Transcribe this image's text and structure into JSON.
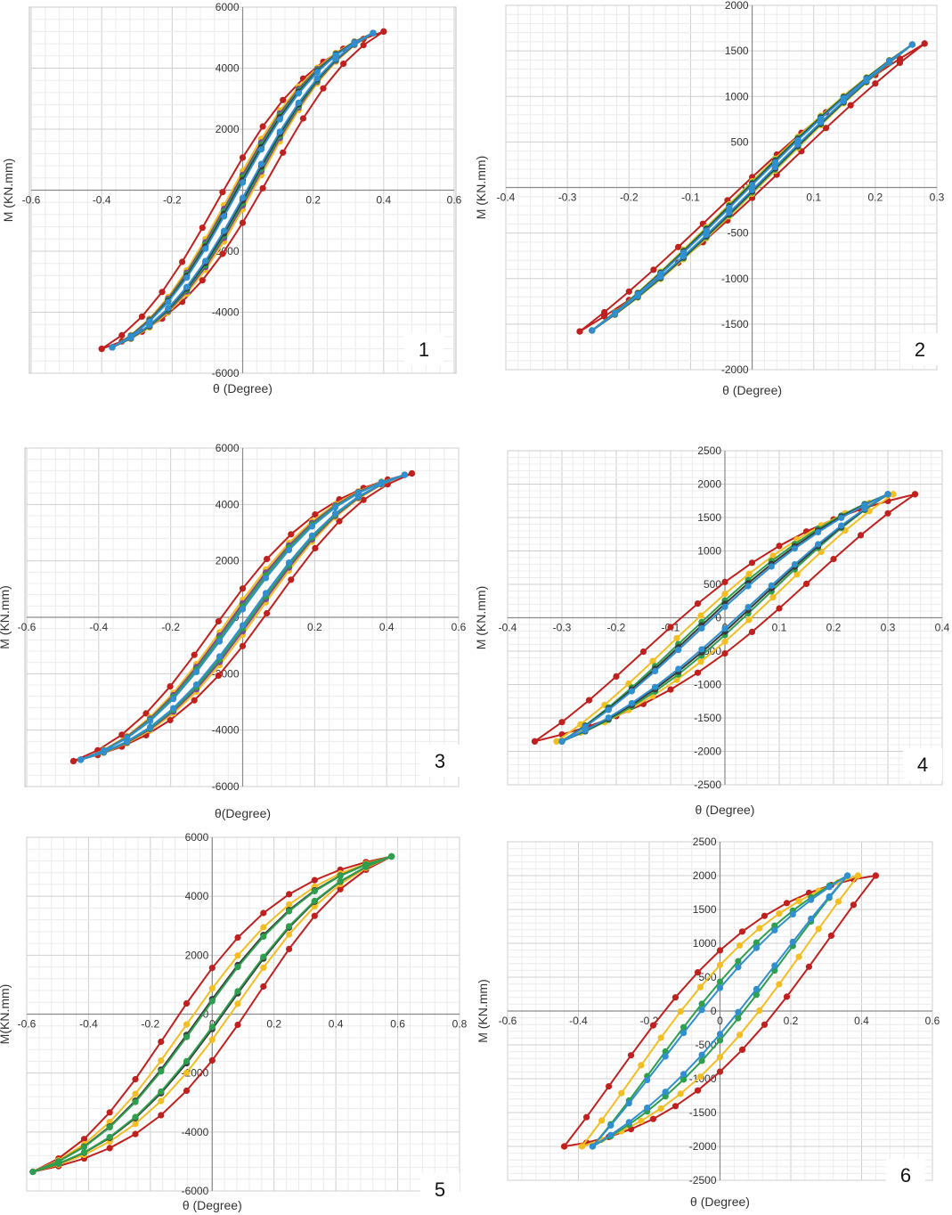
{
  "colors": {
    "red": "#c0201e",
    "yellow": "#f2be22",
    "green": "#2e9e4f",
    "blue": "#2f8fcf",
    "purple": "#7a4a96",
    "dark": "#3a3a3a",
    "grid": "#d6d6d6"
  },
  "chart_data": [
    {
      "type": "scatter",
      "number": "1",
      "xlabel": "θ (Degree)",
      "ylabel": "M (KN.mm)",
      "xlim": [
        -0.6,
        0.6
      ],
      "ylim": [
        -6000,
        6000
      ],
      "xticks": [
        "-0.6",
        "-0.4",
        "-0.2",
        "0",
        "0.2",
        "0.4",
        "0.6"
      ],
      "yticks": [
        "-6000",
        "-4000",
        "-2000",
        "0",
        "2000",
        "4000",
        "6000"
      ],
      "series": [
        {
          "color": "red",
          "amp_x": 0.4,
          "amp_y": 5200,
          "width": 0.055,
          "k": 1.3
        },
        {
          "color": "yellow",
          "amp_x": 0.37,
          "amp_y": 5150,
          "width": 0.03,
          "k": 1.3
        },
        {
          "color": "purple",
          "amp_x": 0.37,
          "amp_y": 5150,
          "width": 0.024,
          "k": 1.3
        },
        {
          "color": "green",
          "amp_x": 0.37,
          "amp_y": 5150,
          "width": 0.02,
          "k": 1.3
        },
        {
          "color": "dark",
          "amp_x": 0.37,
          "amp_y": 5150,
          "width": 0.016,
          "k": 1.3
        },
        {
          "color": "blue",
          "amp_x": 0.37,
          "amp_y": 5150,
          "width": 0.012,
          "k": 1.3
        }
      ]
    },
    {
      "type": "scatter",
      "number": "2",
      "xlabel": "θ (Degree)",
      "ylabel": "M (KN.mm)",
      "xlim": [
        -0.4,
        0.3
      ],
      "ylim": [
        -2000,
        2000
      ],
      "xticks": [
        "-0.4",
        "-0.3",
        "-0.2",
        "-0.1",
        "0",
        "0.1",
        "0.2",
        "0.3"
      ],
      "yticks": [
        "-2000",
        "-1500",
        "-1000",
        "-500",
        "0",
        "500",
        "1000",
        "1500",
        "2000"
      ],
      "series": [
        {
          "color": "red",
          "amp_x": 0.28,
          "amp_y": 1580,
          "width": 0.018,
          "k": 0.6
        },
        {
          "color": "yellow",
          "amp_x": 0.26,
          "amp_y": 1570,
          "width": 0.01,
          "k": 0.6
        },
        {
          "color": "green",
          "amp_x": 0.26,
          "amp_y": 1570,
          "width": 0.008,
          "k": 0.6
        },
        {
          "color": "dark",
          "amp_x": 0.26,
          "amp_y": 1570,
          "width": 0.006,
          "k": 0.6
        },
        {
          "color": "blue",
          "amp_x": 0.26,
          "amp_y": 1570,
          "width": 0.004,
          "k": 0.6
        }
      ]
    },
    {
      "type": "scatter",
      "number": "3",
      "xlabel": "θ(Degree)",
      "ylabel": "M (KN.mm)",
      "xlim": [
        -0.6,
        0.6
      ],
      "ylim": [
        -6000,
        6000
      ],
      "xticks": [
        "-0.6",
        "-0.4",
        "-0.2",
        "0",
        "0.2",
        "0.4",
        "0.6"
      ],
      "yticks": [
        "-6000",
        "-4000",
        "-2000",
        "0",
        "2000",
        "4000",
        "6000"
      ],
      "series": [
        {
          "color": "red",
          "amp_x": 0.47,
          "amp_y": 5100,
          "width": 0.06,
          "k": 1.4
        },
        {
          "color": "yellow",
          "amp_x": 0.45,
          "amp_y": 5050,
          "width": 0.035,
          "k": 1.4
        },
        {
          "color": "purple",
          "amp_x": 0.45,
          "amp_y": 5050,
          "width": 0.028,
          "k": 1.4
        },
        {
          "color": "green",
          "amp_x": 0.45,
          "amp_y": 5050,
          "width": 0.022,
          "k": 1.4
        },
        {
          "color": "blue",
          "amp_x": 0.45,
          "amp_y": 5050,
          "width": 0.016,
          "k": 1.4
        }
      ]
    },
    {
      "type": "scatter",
      "number": "4",
      "xlabel": "θ (Degree)",
      "ylabel": "M (KN.mm)",
      "xlim": [
        -0.4,
        0.4
      ],
      "ylim": [
        -2500,
        2500
      ],
      "xticks": [
        "-0.4",
        "-0.3",
        "-0.2",
        "-0.1",
        "0",
        "0.1",
        "0.2",
        "0.3",
        "0.4"
      ],
      "yticks": [
        "-2500",
        "-2000",
        "-1500",
        "-1000",
        "-500",
        "0",
        "500",
        "1000",
        "1500",
        "2000",
        "2500"
      ],
      "series": [
        {
          "color": "red",
          "amp_x": 0.35,
          "amp_y": 1850,
          "width": 0.085,
          "k": 0.8
        },
        {
          "color": "yellow",
          "amp_x": 0.31,
          "amp_y": 1850,
          "width": 0.05,
          "k": 0.8
        },
        {
          "color": "green",
          "amp_x": 0.3,
          "amp_y": 1850,
          "width": 0.035,
          "k": 0.8
        },
        {
          "color": "dark",
          "amp_x": 0.3,
          "amp_y": 1850,
          "width": 0.028,
          "k": 0.8
        },
        {
          "color": "blue",
          "amp_x": 0.3,
          "amp_y": 1850,
          "width": 0.022,
          "k": 0.8
        }
      ]
    },
    {
      "type": "scatter",
      "number": "5",
      "xlabel": "θ (Degree)",
      "ylabel": "M(KN.mm)",
      "xlim": [
        -0.6,
        0.8
      ],
      "ylim": [
        -6000,
        6000
      ],
      "xticks": [
        "-0.6",
        "-0.4",
        "-0.2",
        "0",
        "0.2",
        "0.4",
        "0.6",
        "0.8"
      ],
      "yticks": [
        "-6000",
        "-4000",
        "-2000",
        "0",
        "2000",
        "4000",
        "6000"
      ],
      "series": [
        {
          "color": "red",
          "amp_x": 0.58,
          "amp_y": 5350,
          "width": 0.11,
          "k": 1.4
        },
        {
          "color": "yellow",
          "amp_x": 0.58,
          "amp_y": 5350,
          "width": 0.06,
          "k": 1.4
        },
        {
          "color": "dark",
          "amp_x": 0.58,
          "amp_y": 5350,
          "width": 0.035,
          "k": 1.4
        },
        {
          "color": "green",
          "amp_x": 0.58,
          "amp_y": 5350,
          "width": 0.03,
          "k": 1.4
        }
      ]
    },
    {
      "type": "scatter",
      "number": "6",
      "xlabel": "θ (Degree)",
      "ylabel": "M (KN.mm)",
      "xlim": [
        -0.6,
        0.6
      ],
      "ylim": [
        -2500,
        2500
      ],
      "xticks": [
        "-0.6",
        "-0.4",
        "-0.2",
        "0",
        "0.2",
        "0.4",
        "0.6"
      ],
      "yticks": [
        "-2500",
        "-2000",
        "-1500",
        "-1000",
        "-500",
        "0",
        "500",
        "1000",
        "1500",
        "2000",
        "2500"
      ],
      "series": [
        {
          "color": "red",
          "amp_x": 0.44,
          "amp_y": 2000,
          "width": 0.18,
          "k": 0.6
        },
        {
          "color": "yellow",
          "amp_x": 0.39,
          "amp_y": 2000,
          "width": 0.12,
          "k": 0.6
        },
        {
          "color": "green",
          "amp_x": 0.36,
          "amp_y": 2000,
          "width": 0.07,
          "k": 0.6
        },
        {
          "color": "blue",
          "amp_x": 0.36,
          "amp_y": 2000,
          "width": 0.055,
          "k": 0.6
        }
      ]
    }
  ]
}
